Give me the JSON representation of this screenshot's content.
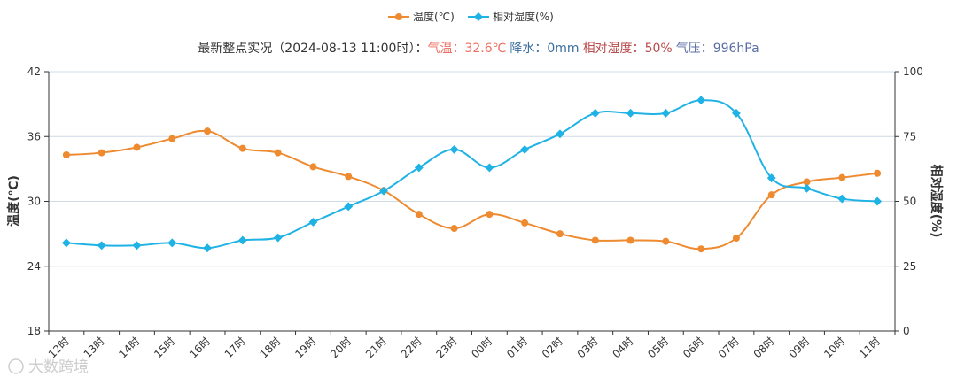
{
  "legend": {
    "temp_label": "温度(℃)",
    "humidity_label": "相对湿度(%)"
  },
  "subtitle": {
    "prefix": "最新整点实况（2024-08-13 11:00时）：",
    "temp_label": "气温：",
    "temp_value": "32.6℃",
    "rain_label": "降水：",
    "rain_value": "0mm",
    "humidity_label": "相对湿度：",
    "humidity_value": "50%",
    "pressure_label": "气压：",
    "pressure_value": "996hPa"
  },
  "watermark": "大数跨境",
  "colors": {
    "temperature": "#ee8a30",
    "humidity": "#1fb2e4",
    "grid": "#cfdce8",
    "axis": "#333333",
    "subtitle_text": "#333333",
    "temp_text": "#ee6f63",
    "rain_text": "#3a6d9e",
    "humidity_text": "#b84b4b",
    "pressure_text": "#5a6ea5"
  },
  "chart_data": {
    "type": "line",
    "categories": [
      "12时",
      "13时",
      "14时",
      "15时",
      "16时",
      "17时",
      "18时",
      "19时",
      "20时",
      "21时",
      "22时",
      "23时",
      "00时",
      "01时",
      "02时",
      "03时",
      "04时",
      "05时",
      "06时",
      "07时",
      "08时",
      "09时",
      "10时",
      "11时"
    ],
    "series": [
      {
        "name": "温度(℃)",
        "axis": "left",
        "values": [
          34.3,
          34.5,
          35.0,
          35.8,
          36.5,
          34.9,
          34.5,
          33.2,
          32.3,
          31.0,
          28.8,
          27.5,
          28.8,
          28.0,
          27.0,
          26.4,
          26.4,
          26.3,
          25.6,
          26.6,
          30.6,
          31.8,
          32.2,
          32.6
        ]
      },
      {
        "name": "相对湿度(%)",
        "axis": "right",
        "values": [
          34,
          33,
          33,
          34,
          32,
          35,
          36,
          42,
          48,
          54,
          63,
          70,
          63,
          70,
          76,
          84,
          84,
          84,
          89,
          84,
          59,
          55,
          51,
          50
        ]
      }
    ],
    "left_axis": {
      "label": "温度(℃)",
      "min": 18,
      "max": 42,
      "ticks": [
        18,
        24,
        30,
        36,
        42
      ]
    },
    "right_axis": {
      "label": "相对湿度(%)",
      "min": 0,
      "max": 100,
      "ticks": [
        0,
        25,
        50,
        75,
        100
      ]
    },
    "grid": true,
    "legend_position": "top-center"
  }
}
